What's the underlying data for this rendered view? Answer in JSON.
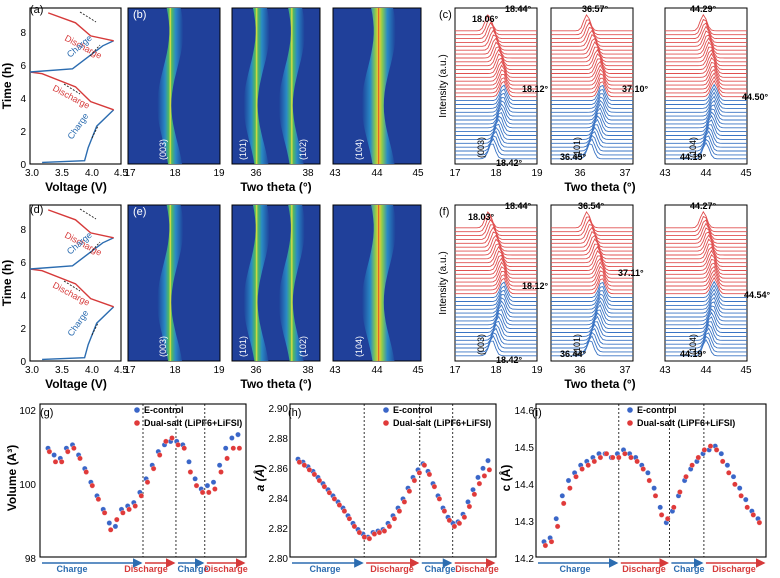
{
  "chart_data": [
    {
      "panel": "(a)",
      "type": "line",
      "xlabel": "Voltage (V)",
      "ylabel": "Time (h)",
      "xlim": [
        3.0,
        4.5
      ],
      "ylim": [
        0,
        9.5
      ],
      "xticks": [
        "3.0",
        "3.5",
        "4.0",
        "4.5"
      ],
      "yticks": [
        "0",
        "2",
        "4",
        "6",
        "8"
      ],
      "annotations": [
        "Discharge",
        "Charge",
        "Discharge",
        "Charge"
      ],
      "series": [
        {
          "name": "charge-1",
          "color": "#2b6cb0",
          "points": [
            [
              3.2,
              0.1
            ],
            [
              3.9,
              0.2
            ],
            [
              3.96,
              1.0
            ],
            [
              4.1,
              2.3
            ],
            [
              4.38,
              3.3
            ]
          ]
        },
        {
          "name": "discharge-1",
          "color": "#d63a3a",
          "points": [
            [
              4.38,
              3.3
            ],
            [
              4.0,
              3.8
            ],
            [
              3.75,
              4.7
            ],
            [
              3.2,
              5.5
            ],
            [
              3.0,
              5.6
            ]
          ]
        },
        {
          "name": "charge-2",
          "color": "#2b6cb0",
          "points": [
            [
              3.0,
              5.6
            ],
            [
              3.7,
              5.8
            ],
            [
              3.95,
              6.5
            ],
            [
              4.2,
              7.2
            ],
            [
              4.38,
              7.5
            ]
          ]
        },
        {
          "name": "discharge-2",
          "color": "#d63a3a",
          "points": [
            [
              4.38,
              7.5
            ],
            [
              4.0,
              7.8
            ],
            [
              3.75,
              8.6
            ],
            [
              3.3,
              9.2
            ]
          ]
        }
      ]
    },
    {
      "panel": "(b)",
      "type": "heatmap",
      "xlabel": "Two theta (°)",
      "groups": [
        {
          "label": "(003)",
          "xlim": [
            17,
            19
          ],
          "xticks": [
            "17",
            "18",
            "19"
          ]
        },
        {
          "label": "(101)",
          "xlim": [
            35.5,
            38.5
          ],
          "xticks": [
            "36",
            "38"
          ]
        },
        {
          "label": "(102)",
          "xlim": [
            35.5,
            38.5
          ],
          "xticks": []
        },
        {
          "label": "(104)",
          "xlim": [
            43,
            45
          ],
          "xticks": [
            "43",
            "44",
            "45"
          ]
        }
      ]
    },
    {
      "panel": "(c)",
      "type": "line",
      "xlabel": "Two theta (°)",
      "ylabel": "Intensity (a.u.)",
      "groups": [
        {
          "label": "(003)",
          "xlim": [
            17,
            19
          ],
          "xticks": [
            "17",
            "18",
            "19"
          ],
          "peak_labels": [
            "18.44°",
            "18.06°",
            "18.12°",
            "18.42°"
          ]
        },
        {
          "label": "(101)",
          "xlim": [
            35.5,
            37.5
          ],
          "xticks": [
            "36",
            "37"
          ],
          "peak_labels": [
            "36.57°",
            "37.10°",
            "36.45°"
          ]
        },
        {
          "label": "(104)",
          "xlim": [
            43,
            45
          ],
          "xticks": [
            "43",
            "44",
            "45"
          ],
          "peak_labels": [
            "44.29°",
            "44.50°",
            "44.19°"
          ]
        }
      ]
    },
    {
      "panel": "(d)",
      "type": "line",
      "xlabel": "Voltage (V)",
      "ylabel": "Time (h)",
      "xlim": [
        3.0,
        4.5
      ],
      "ylim": [
        0,
        9.5
      ],
      "xticks": [
        "3.0",
        "3.5",
        "4.0",
        "4.5"
      ],
      "yticks": [
        "0",
        "2",
        "4",
        "6",
        "8"
      ],
      "annotations": [
        "Discharge",
        "Charge",
        "Discharge",
        "Charge"
      ],
      "series": [
        {
          "name": "charge-1",
          "color": "#2b6cb0",
          "points": [
            [
              3.2,
              0.1
            ],
            [
              3.9,
              0.2
            ],
            [
              3.96,
              1.0
            ],
            [
              4.1,
              2.3
            ],
            [
              4.38,
              3.3
            ]
          ]
        },
        {
          "name": "discharge-1",
          "color": "#d63a3a",
          "points": [
            [
              4.38,
              3.3
            ],
            [
              4.0,
              3.8
            ],
            [
              3.75,
              4.7
            ],
            [
              3.2,
              5.5
            ],
            [
              3.0,
              5.6
            ]
          ]
        },
        {
          "name": "charge-2",
          "color": "#2b6cb0",
          "points": [
            [
              3.0,
              5.6
            ],
            [
              3.7,
              5.8
            ],
            [
              3.95,
              6.5
            ],
            [
              4.2,
              7.2
            ],
            [
              4.38,
              7.5
            ]
          ]
        },
        {
          "name": "discharge-2",
          "color": "#d63a3a",
          "points": [
            [
              4.38,
              7.5
            ],
            [
              4.0,
              7.8
            ],
            [
              3.75,
              8.6
            ],
            [
              3.3,
              9.2
            ]
          ]
        }
      ]
    },
    {
      "panel": "(e)",
      "type": "heatmap",
      "xlabel": "Two theta (°)",
      "groups": [
        {
          "label": "(003)",
          "xlim": [
            17,
            19
          ],
          "xticks": [
            "17",
            "18",
            "19"
          ]
        },
        {
          "label": "(101)",
          "xlim": [
            35.5,
            38.5
          ],
          "xticks": [
            "36",
            "38"
          ]
        },
        {
          "label": "(102)",
          "xlim": [
            35.5,
            38.5
          ],
          "xticks": []
        },
        {
          "label": "(104)",
          "xlim": [
            43,
            45
          ],
          "xticks": [
            "43",
            "44",
            "45"
          ]
        }
      ]
    },
    {
      "panel": "(f)",
      "type": "line",
      "xlabel": "Two theta (°)",
      "ylabel": "Intensity (a.u.)",
      "groups": [
        {
          "label": "(003)",
          "xlim": [
            17,
            19
          ],
          "xticks": [
            "17",
            "18",
            "19"
          ],
          "peak_labels": [
            "18.44°",
            "18.03°",
            "18.12°",
            "18.42°"
          ]
        },
        {
          "label": "(101)",
          "xlim": [
            35.5,
            37.5
          ],
          "xticks": [
            "36",
            "37"
          ],
          "peak_labels": [
            "36.54°",
            "37.11°",
            "36.44°"
          ]
        },
        {
          "label": "(104)",
          "xlim": [
            43,
            45
          ],
          "xticks": [
            "43",
            "44",
            "45"
          ],
          "peak_labels": [
            "44.27°",
            "44.54°",
            "44.19°"
          ]
        }
      ]
    },
    {
      "panel": "(g)",
      "type": "scatter",
      "ylabel": "Volume (A³)",
      "ylim": [
        98,
        102.5
      ],
      "yticks": [
        "98",
        "100",
        "102"
      ],
      "legend": [
        "E-control",
        "Dual-salt (LiPF6+LiFSI)"
      ],
      "phases": [
        "Charge",
        "Discharge",
        "Charge",
        "Discharge"
      ],
      "series": [
        {
          "name": "E-control",
          "color": "#3a66c8",
          "values": [
            101.2,
            101.0,
            100.9,
            101.2,
            101.3,
            101.0,
            100.6,
            100.2,
            99.8,
            99.4,
            99.0,
            98.9,
            99.4,
            99.5,
            99.6,
            99.9,
            100.3,
            100.7,
            101.1,
            101.3,
            101.4,
            101.4,
            101.3,
            100.8,
            100.3,
            100.0,
            100.1,
            100.2,
            100.7,
            101.2,
            101.5,
            101.6
          ]
        },
        {
          "name": "Dual-salt (LiPF6+LiFSI)",
          "color": "#e03a3a",
          "values": [
            101.1,
            100.8,
            100.8,
            101.1,
            101.2,
            100.9,
            100.5,
            100.1,
            99.7,
            99.3,
            98.8,
            99.1,
            99.3,
            99.4,
            99.5,
            99.8,
            100.2,
            100.6,
            101.0,
            101.4,
            101.5,
            101.3,
            101.2,
            100.5,
            100.1,
            99.9,
            99.9,
            100.0,
            100.5,
            100.9,
            101.2,
            101.2
          ]
        }
      ]
    },
    {
      "panel": "(h)",
      "type": "scatter",
      "ylabel": "a (Å)",
      "ylim": [
        2.8,
        2.9
      ],
      "yticks": [
        "2.80",
        "2.82",
        "2.84",
        "2.86",
        "2.88",
        "2.90"
      ],
      "legend": [
        "E-control",
        "Dual-salt (LiPF6+LiFSI)"
      ],
      "phases": [
        "Charge",
        "Discharge",
        "Charge",
        "Discharge"
      ],
      "series": [
        {
          "name": "E-control",
          "color": "#3a66c8",
          "values": [
            2.864,
            2.862,
            2.859,
            2.856,
            2.852,
            2.848,
            2.844,
            2.84,
            2.836,
            2.832,
            2.827,
            2.822,
            2.818,
            2.815,
            2.813,
            2.816,
            2.817,
            2.818,
            2.822,
            2.827,
            2.832,
            2.838,
            2.845,
            2.852,
            2.857,
            2.861,
            2.856,
            2.848,
            2.84,
            2.832,
            2.826,
            2.822,
            2.823,
            2.828,
            2.836,
            2.844,
            2.852,
            2.858,
            2.863
          ]
        },
        {
          "name": "Dual-salt (LiPF6+LiFSI)",
          "color": "#e03a3a",
          "values": [
            2.862,
            2.86,
            2.857,
            2.854,
            2.85,
            2.846,
            2.842,
            2.838,
            2.834,
            2.83,
            2.825,
            2.82,
            2.816,
            2.813,
            2.812,
            2.815,
            2.816,
            2.817,
            2.82,
            2.825,
            2.83,
            2.836,
            2.843,
            2.85,
            2.855,
            2.86,
            2.854,
            2.846,
            2.838,
            2.83,
            2.824,
            2.82,
            2.822,
            2.826,
            2.833,
            2.841,
            2.848,
            2.853,
            2.857
          ]
        }
      ]
    },
    {
      "panel": "(i)",
      "type": "scatter",
      "ylabel": "c (Å)",
      "ylim": [
        14.2,
        14.6
      ],
      "yticks": [
        "14.2",
        "14.3",
        "14.4",
        "14.5",
        "14.6"
      ],
      "legend": [
        "E-control",
        "Dual-salt (LiPF6+LiFSI)"
      ],
      "phases": [
        "Charge",
        "Discharge",
        "Charge",
        "Discharge"
      ],
      "series": [
        {
          "name": "E-control",
          "color": "#3a66c8",
          "values": [
            14.24,
            14.25,
            14.3,
            14.36,
            14.4,
            14.42,
            14.44,
            14.45,
            14.46,
            14.47,
            14.47,
            14.46,
            14.47,
            14.48,
            14.47,
            14.46,
            14.44,
            14.42,
            14.38,
            14.33,
            14.29,
            14.32,
            14.36,
            14.4,
            14.43,
            14.45,
            14.47,
            14.48,
            14.49,
            14.47,
            14.44,
            14.41,
            14.38,
            14.35,
            14.32,
            14.3
          ]
        },
        {
          "name": "Dual-salt (LiPF6+LiFSI)",
          "color": "#e03a3a",
          "values": [
            14.23,
            14.24,
            14.28,
            14.34,
            14.38,
            14.41,
            14.43,
            14.44,
            14.45,
            14.46,
            14.47,
            14.46,
            14.46,
            14.47,
            14.46,
            14.45,
            14.43,
            14.4,
            14.36,
            14.31,
            14.3,
            14.33,
            14.37,
            14.41,
            14.44,
            14.46,
            14.48,
            14.49,
            14.48,
            14.45,
            14.42,
            14.39,
            14.36,
            14.33,
            14.31,
            14.29
          ]
        }
      ]
    }
  ],
  "colors": {
    "blue": "#2b6cb0",
    "red": "#d63a3a",
    "heatmap_bg": "#20409a",
    "scatter_blue": "#3a66c8",
    "scatter_red": "#e03a3a"
  }
}
